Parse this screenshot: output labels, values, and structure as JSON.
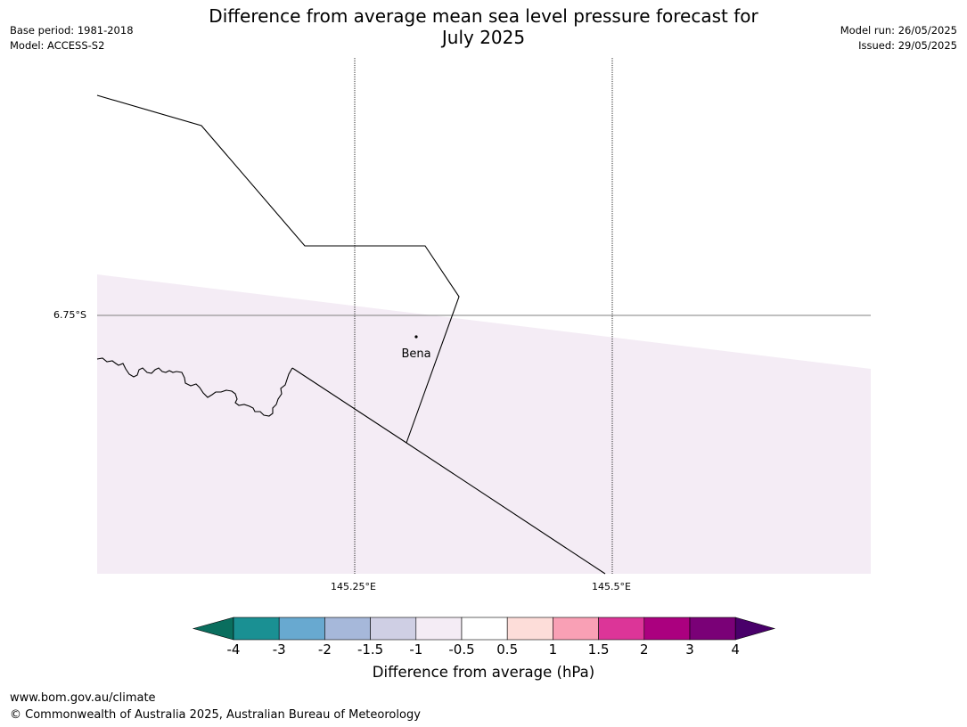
{
  "title_lines": [
    "Difference from average mean sea level pressure forecast for",
    "July 2025"
  ],
  "meta_left": {
    "base_period": "Base period: 1981-2018",
    "model": "Model: ACCESS-S2"
  },
  "meta_right": {
    "model_run": "Model run: 26/05/2025",
    "issued": "Issued: 29/05/2025"
  },
  "map": {
    "place_label": "Bena",
    "lat_label": "6.75°S",
    "lon_labels": [
      "145.25°E",
      "145.5°E"
    ],
    "shading_color": "#f4ecf5"
  },
  "colorbar": {
    "title": "Difference from average (hPa)",
    "tick_labels": [
      "-4",
      "-3",
      "-2",
      "-1.5",
      "-1",
      "-0.5",
      "0.5",
      "1",
      "1.5",
      "2",
      "3",
      "4"
    ],
    "colors": [
      "#0a6e5e",
      "#1a9093",
      "#68a9d0",
      "#a6b8da",
      "#cfcfe4",
      "#f4ecf5",
      "#ffffff",
      "#fdddd9",
      "#f9a0b5",
      "#dc3598",
      "#ab007f",
      "#7a0177",
      "#49006a"
    ]
  },
  "footer": {
    "url": "www.bom.gov.au/climate",
    "copyright": "© Commonwealth of Australia 2025, Australian Bureau of Meteorology"
  }
}
